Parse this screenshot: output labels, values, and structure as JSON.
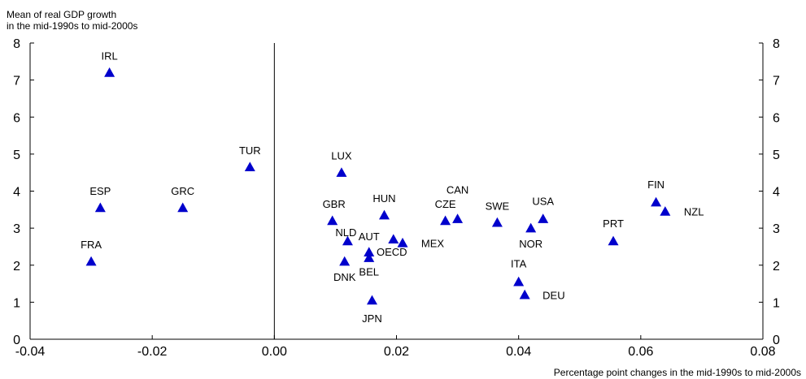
{
  "chart_data": {
    "type": "scatter",
    "ylabel": "Mean of real GDP growth\nin the mid-1990s to mid-2000s",
    "xlabel": "Percentage point changes in the mid-1990s to mid-2000s",
    "xlim": [
      -0.04,
      0.08
    ],
    "ylim": [
      0,
      8
    ],
    "x_ticks": [
      "-0.04",
      "-0.02",
      "0.00",
      "0.02",
      "0.04",
      "0.06",
      "0.08"
    ],
    "y_ticks": [
      "0",
      "1",
      "2",
      "3",
      "4",
      "5",
      "6",
      "7",
      "8"
    ],
    "marker": "triangle",
    "marker_color": "#0000cc",
    "reference_line_x": 0,
    "grid": false,
    "points": [
      {
        "label": "IRL",
        "x": -0.027,
        "y": 7.2
      },
      {
        "label": "ESP",
        "x": -0.0285,
        "y": 3.55
      },
      {
        "label": "FRA",
        "x": -0.03,
        "y": 2.1
      },
      {
        "label": "GRC",
        "x": -0.015,
        "y": 3.55
      },
      {
        "label": "TUR",
        "x": -0.004,
        "y": 4.65
      },
      {
        "label": "LUX",
        "x": 0.011,
        "y": 4.5
      },
      {
        "label": "GBR",
        "x": 0.0095,
        "y": 3.2
      },
      {
        "label": "NLD",
        "x": 0.012,
        "y": 2.65
      },
      {
        "label": "DNK",
        "x": 0.0115,
        "y": 2.1
      },
      {
        "label": "HUN",
        "x": 0.018,
        "y": 3.35
      },
      {
        "label": "AUT",
        "x": 0.0155,
        "y": 2.35
      },
      {
        "label": "OECD",
        "x": 0.0195,
        "y": 2.7
      },
      {
        "label": "BEL",
        "x": 0.0155,
        "y": 2.2
      },
      {
        "label": "MEX",
        "x": 0.021,
        "y": 2.6
      },
      {
        "label": "JPN",
        "x": 0.016,
        "y": 1.05
      },
      {
        "label": "CZE",
        "x": 0.028,
        "y": 3.2
      },
      {
        "label": "CAN",
        "x": 0.03,
        "y": 3.25
      },
      {
        "label": "SWE",
        "x": 0.0365,
        "y": 3.15
      },
      {
        "label": "USA",
        "x": 0.044,
        "y": 3.25
      },
      {
        "label": "NOR",
        "x": 0.042,
        "y": 3.0
      },
      {
        "label": "ITA",
        "x": 0.04,
        "y": 1.55
      },
      {
        "label": "DEU",
        "x": 0.041,
        "y": 1.2
      },
      {
        "label": "PRT",
        "x": 0.0555,
        "y": 2.65
      },
      {
        "label": "FIN",
        "x": 0.0625,
        "y": 3.7
      },
      {
        "label": "NZL",
        "x": 0.064,
        "y": 3.45
      }
    ]
  }
}
